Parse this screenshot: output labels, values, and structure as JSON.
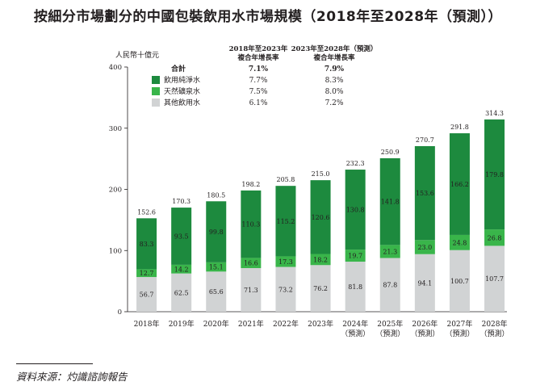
{
  "title": "按細分市場劃分的中國包裝飲用水市場規模（2018年至2028年（預測））",
  "source": "資料來源：灼識諮詢報告",
  "chart_data": {
    "type": "bar",
    "stacked": true,
    "unit_label": "人民幣十億元",
    "ylim": [
      0,
      400
    ],
    "yticks": [
      0,
      100,
      200,
      300,
      400
    ],
    "categories": [
      "2018年",
      "2019年",
      "2020年",
      "2021年",
      "2022年",
      "2023年",
      "2024年",
      "2025年",
      "2026年",
      "2027年",
      "2028年"
    ],
    "forecast_note": "（預測）",
    "forecast_start_index": 6,
    "series": [
      {
        "name": "其他飲用水",
        "color": "#d1d3d4",
        "values": [
          56.7,
          62.5,
          65.6,
          71.3,
          73.2,
          76.2,
          81.8,
          87.8,
          94.1,
          100.7,
          107.7
        ]
      },
      {
        "name": "天然礦泉水",
        "color": "#39b54a",
        "values": [
          12.7,
          14.2,
          15.1,
          16.6,
          17.3,
          18.2,
          19.7,
          21.3,
          23.0,
          24.8,
          26.8
        ]
      },
      {
        "name": "飲用純淨水",
        "color": "#1d8a3e",
        "values": [
          83.3,
          93.5,
          99.8,
          110.3,
          115.2,
          120.6,
          130.8,
          141.8,
          153.6,
          166.2,
          179.8
        ]
      }
    ],
    "totals": [
      152.6,
      170.3,
      180.5,
      198.2,
      205.8,
      215.0,
      232.3,
      250.9,
      270.7,
      291.8,
      314.3
    ],
    "cagr_table": {
      "headers": [
        "2018年至2023年\n複合年增長率",
        "2023年至2028年（預測）\n複合年增長率"
      ],
      "rows": [
        {
          "label": "合計",
          "values": [
            "7.1%",
            "7.9%"
          ],
          "bold": true
        },
        {
          "label": "飲用純淨水",
          "values": [
            "7.7%",
            "8.3%"
          ],
          "color": "#1d8a3e"
        },
        {
          "label": "天然礦泉水",
          "values": [
            "7.5%",
            "8.0%"
          ],
          "color": "#39b54a"
        },
        {
          "label": "其他飲用水",
          "values": [
            "6.1%",
            "7.2%"
          ],
          "color": "#d1d3d4"
        }
      ]
    }
  }
}
